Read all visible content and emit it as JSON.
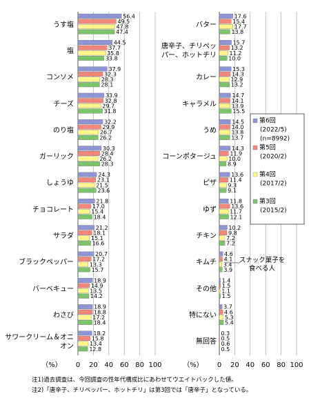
{
  "chart_data": [
    {
      "type": "hbar",
      "unit_label": "（%）",
      "xlim": [
        0,
        100
      ],
      "xticks": [
        0,
        20,
        40,
        60,
        80,
        100
      ],
      "grid": true,
      "categories": [
        "うす塩",
        "塩",
        "コンソメ",
        "チーズ",
        "のり塩",
        "ガーリック",
        "しょうゆ",
        "チョコレート",
        "サラダ",
        "ブラックペッパー",
        "バーベキュー",
        "わさび",
        "サワークリーム＆オニオン"
      ],
      "series": [
        {
          "color": "#8f94d2",
          "values": [
            56.4,
            44.5,
            37.9,
            33.9,
            32.2,
            30.3,
            24.3,
            21.8,
            21.2,
            20.7,
            18.9,
            18.9,
            18.2
          ],
          "value_labels": [
            "56.4",
            "44.5",
            "37.9",
            "33.9",
            "32.2",
            "30.3",
            "24.3",
            "21.8",
            "21.2",
            "20.7",
            "18.9",
            "18.9",
            "18.2"
          ]
        },
        {
          "color": "#f0877a",
          "values": [
            49.5,
            37.7,
            32.3,
            32.8,
            29.9,
            28.4,
            23.1,
            17.0,
            18.1,
            17.2,
            14.9,
            18.8,
            15.8
          ],
          "value_labels": [
            "49.5",
            "37.7",
            "32.3",
            "32.8",
            "29.9",
            "28.4",
            "23.1",
            "17.0",
            "18.1",
            "17.2",
            "14.9",
            "18.8",
            "15.8"
          ]
        },
        {
          "color": "#fff58a",
          "values": [
            47.8,
            35.8,
            28.3,
            29.7,
            26.7,
            26.2,
            21.5,
            15.4,
            15.1,
            13.3,
            13.5,
            17.2,
            13.4
          ],
          "value_labels": [
            "47.8",
            "35.8",
            "28.3",
            "29.7",
            "26.7",
            "26.2",
            "21.5",
            "15.4",
            "15.1",
            "13.3",
            "13.5",
            "17.2",
            "13.4"
          ]
        },
        {
          "color": "#7cc36b",
          "values": [
            47.4,
            33.8,
            28.1,
            31.8,
            26.2,
            28.3,
            23.6,
            18.4,
            16.6,
            15.7,
            14.2,
            18.4,
            12.8
          ],
          "value_labels": [
            "47.4",
            "33.8",
            "28.1",
            "31.8",
            "26.2",
            "28.3",
            "23.6",
            "18.4",
            "16.6",
            "15.7",
            "14.2",
            "18.4",
            "12.8"
          ]
        }
      ]
    },
    {
      "type": "hbar",
      "unit_label": "（%）",
      "xlim": [
        0,
        100
      ],
      "xticks": [
        0,
        20,
        40,
        60,
        80,
        100
      ],
      "grid": true,
      "annotation": "スナック菓子を食べる人",
      "categories": [
        "バター",
        "唐辛子、チリペッパー、ホットチリ",
        "カレー",
        "キャラメル",
        "うめ",
        "コーンポタージュ",
        "ピザ",
        "ゆず",
        "チキン",
        "キムチ",
        "その他",
        "特にない",
        "無回答"
      ],
      "series": [
        {
          "name": "第6回",
          "period": "(2022/5)",
          "n": "(n=8992)",
          "color": "#8f94d2",
          "values": [
            17.6,
            15.7,
            15.3,
            14.7,
            14.5,
            14.3,
            13.6,
            11.8,
            10.2,
            4.6,
            1.4,
            3.7,
            0.3
          ],
          "value_labels": [
            "17.6",
            "15.7",
            "15.3",
            "14.7",
            "14.5",
            "14.3",
            "13.6",
            "11.8",
            "10.2",
            "4.6",
            "1.4",
            "3.7",
            "0.3"
          ]
        },
        {
          "name": "第5回",
          "period": "(2020/2)",
          "color": "#f0877a",
          "values": [
            15.4,
            13.2,
            14.3,
            14.1,
            14.0,
            11.9,
            11.4,
            13.6,
            9.8,
            4.1,
            1.5,
            4.6,
            0.5
          ],
          "value_labels": [
            "15.4",
            "13.2",
            "14.3",
            "14.1",
            "14.0",
            "11.9",
            "11.4",
            "13.6",
            "9.8",
            "4.1",
            "1.5",
            "4.6",
            "0.5"
          ]
        },
        {
          "name": "第4回",
          "period": "(2017/2)",
          "color": "#fff58a",
          "values": [
            17.7,
            11.2,
            12.9,
            13.9,
            13.8,
            10.0,
            9.3,
            11.7,
            7.2,
            3.4,
            1.1,
            5.3,
            0.6
          ],
          "value_labels": [
            "17.7",
            "11.2",
            "12.9",
            "13.9",
            "13.8",
            "10.0",
            "9.3",
            "11.7",
            "7.2",
            "3.4",
            "1.1",
            "5.3",
            "0.6"
          ]
        },
        {
          "name": "第3回",
          "period": "(2015/2)",
          "color": "#7cc36b",
          "values": [
            13.8,
            10.0,
            13.2,
            15.5,
            13.7,
            8.9,
            9.1,
            12.1,
            7.2,
            3.9,
            1.5,
            5.4,
            0.5
          ],
          "value_labels": [
            "13.8",
            "10.0",
            "13.2",
            "15.5",
            "13.7",
            "8.9",
            "9.1",
            "12.1",
            "7.2",
            "3.9",
            "1.5",
            "5.4",
            "0.5"
          ]
        }
      ]
    }
  ],
  "notes": [
    "注1)過去調査は、今回調査の性年代構成比にあわせてウエイトバックした値。",
    "注2)「唐辛子、チリペッパー、ホットチリ」は第3回では「唐辛子」となっている。"
  ]
}
